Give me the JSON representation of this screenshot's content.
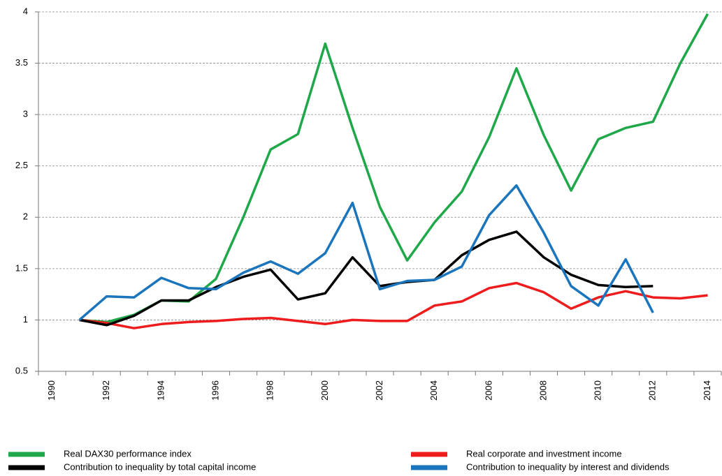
{
  "chart_data": {
    "type": "line",
    "categories": [
      null,
      1991,
      1992,
      1993,
      1994,
      1995,
      1996,
      1997,
      1998,
      1999,
      2000,
      2001,
      2002,
      2003,
      2004,
      2005,
      2006,
      2007,
      2008,
      2009,
      2010,
      2011,
      2012,
      2013,
      2014
    ],
    "category_labels": [
      "1990",
      null,
      "1992",
      null,
      "1994",
      null,
      "1996",
      null,
      "1998",
      null,
      "2000",
      null,
      "2002",
      null,
      "2004",
      null,
      "2006",
      null,
      "2008",
      null,
      "2010",
      null,
      "2012",
      null,
      "2014"
    ],
    "ylim": [
      0.5,
      4
    ],
    "yticks": [
      0.5,
      1,
      1.5,
      2,
      2.5,
      3,
      3.5,
      4
    ],
    "grid": true,
    "series": [
      {
        "name": "Real DAX30 performance index",
        "color": "#1fa84a",
        "values": [
          null,
          1.0,
          0.98,
          1.05,
          1.19,
          1.18,
          1.4,
          2.0,
          2.66,
          2.81,
          3.69,
          2.87,
          2.1,
          1.58,
          1.95,
          2.25,
          2.78,
          3.45,
          2.8,
          2.26,
          2.76,
          2.87,
          2.93,
          3.5,
          3.98
        ]
      },
      {
        "name": "Real corporate and investment income",
        "color": "#ee1c1c",
        "values": [
          null,
          1.0,
          0.97,
          0.92,
          0.96,
          0.98,
          0.99,
          1.01,
          1.02,
          0.99,
          0.96,
          1.0,
          0.99,
          0.99,
          1.14,
          1.18,
          1.31,
          1.36,
          1.27,
          1.11,
          1.22,
          1.28,
          1.22,
          1.21,
          1.24
        ]
      },
      {
        "name": "Contribution to inequality by total capital income",
        "color": "#000000",
        "values": [
          null,
          1.0,
          0.95,
          1.04,
          1.19,
          1.19,
          1.32,
          1.42,
          1.49,
          1.2,
          1.26,
          1.61,
          1.33,
          1.37,
          1.39,
          1.63,
          1.78,
          1.86,
          1.61,
          1.44,
          1.34,
          1.32,
          1.33,
          null,
          null
        ]
      },
      {
        "name": "Contribution to inequality by interest and dividends",
        "color": "#1a75bc",
        "values": [
          null,
          1.0,
          1.23,
          1.22,
          1.41,
          1.31,
          1.3,
          1.46,
          1.57,
          1.45,
          1.65,
          2.14,
          1.3,
          1.38,
          1.39,
          1.52,
          2.02,
          2.31,
          1.85,
          1.33,
          1.14,
          1.59,
          1.07,
          null,
          null
        ]
      }
    ]
  }
}
